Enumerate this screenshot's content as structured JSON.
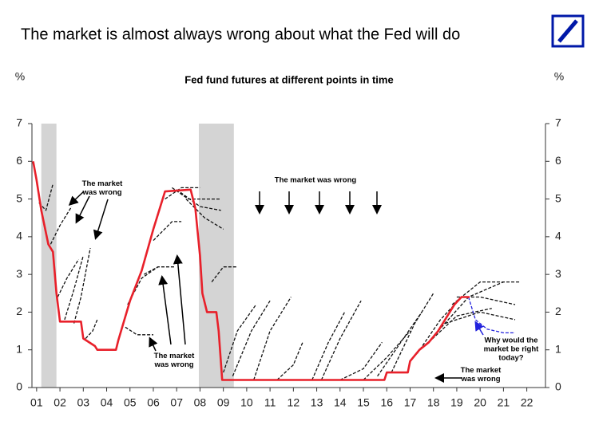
{
  "page_title": "The market is almost always wrong about what the Fed will do",
  "chart_data": {
    "type": "line",
    "title": "Fed fund futures at different points in time",
    "y_label": "%",
    "y2_label": "%",
    "xlim": [
      2000.8,
      2022.8
    ],
    "xticks": [
      {
        "value": 2001,
        "label": "01"
      },
      {
        "value": 2002,
        "label": "02"
      },
      {
        "value": 2003,
        "label": "03"
      },
      {
        "value": 2004,
        "label": "04"
      },
      {
        "value": 2005,
        "label": "05"
      },
      {
        "value": 2006,
        "label": "06"
      },
      {
        "value": 2007,
        "label": "07"
      },
      {
        "value": 2008,
        "label": "08"
      },
      {
        "value": 2009,
        "label": "09"
      },
      {
        "value": 2010,
        "label": "10"
      },
      {
        "value": 2011,
        "label": "11"
      },
      {
        "value": 2012,
        "label": "12"
      },
      {
        "value": 2013,
        "label": "13"
      },
      {
        "value": 2014,
        "label": "14"
      },
      {
        "value": 2015,
        "label": "15"
      },
      {
        "value": 2016,
        "label": "16"
      },
      {
        "value": 2017,
        "label": "17"
      },
      {
        "value": 2018,
        "label": "18"
      },
      {
        "value": 2019,
        "label": "19"
      },
      {
        "value": 2020,
        "label": "20"
      },
      {
        "value": 2021,
        "label": "21"
      },
      {
        "value": 2022,
        "label": "22"
      }
    ],
    "ylim": [
      0,
      7
    ],
    "yticks": [
      0,
      1,
      2,
      3,
      4,
      5,
      6,
      7
    ],
    "y2lim": [
      0,
      7
    ],
    "y2ticks": [
      0,
      1,
      2,
      3,
      4,
      5,
      6,
      7
    ],
    "shaded_periods": [
      [
        2001.2,
        2001.85
      ],
      [
        2007.95,
        2009.45
      ]
    ],
    "shade_color": "#d4d4d4",
    "series": [
      {
        "color": "#111111",
        "dashed": true,
        "x": [
          2001.1,
          2001.4,
          2001.7
        ],
        "values": [
          4.9,
          4.7,
          5.4
        ]
      },
      {
        "color": "#111111",
        "dashed": true,
        "x": [
          2001.6,
          2002.0,
          2002.5
        ],
        "values": [
          3.8,
          4.3,
          4.8
        ]
      },
      {
        "color": "#111111",
        "dashed": true,
        "x": [
          2001.9,
          2002.3,
          2002.8
        ],
        "values": [
          2.4,
          2.9,
          3.4
        ]
      },
      {
        "color": "#111111",
        "dashed": true,
        "x": [
          2002.2,
          2002.6,
          2003.0
        ],
        "values": [
          1.8,
          2.6,
          3.5
        ]
      },
      {
        "color": "#111111",
        "dashed": true,
        "x": [
          2002.6,
          2002.9,
          2003.3
        ],
        "values": [
          1.7,
          2.4,
          3.7
        ]
      },
      {
        "color": "#111111",
        "dashed": true,
        "x": [
          2003.1,
          2003.4,
          2003.6
        ],
        "values": [
          1.3,
          1.5,
          1.8
        ]
      },
      {
        "color": "#111111",
        "dashed": true,
        "x": [
          2004.8,
          2005.3,
          2006.0
        ],
        "values": [
          1.6,
          1.4,
          1.4
        ]
      },
      {
        "color": "#111111",
        "dashed": true,
        "x": [
          2004.9,
          2005.5,
          2006.2
        ],
        "values": [
          2.2,
          2.9,
          3.2
        ]
      },
      {
        "color": "#111111",
        "dashed": true,
        "x": [
          2005.6,
          2006.2,
          2006.9
        ],
        "values": [
          3.0,
          3.2,
          3.2
        ]
      },
      {
        "color": "#111111",
        "dashed": true,
        "x": [
          2006.0,
          2006.8,
          2007.2
        ],
        "values": [
          3.9,
          4.4,
          4.4
        ]
      },
      {
        "color": "#111111",
        "dashed": true,
        "x": [
          2006.5,
          2007.2,
          2008.0
        ],
        "values": [
          5.0,
          5.3,
          5.3
        ]
      },
      {
        "color": "#111111",
        "dashed": true,
        "x": [
          2006.8,
          2007.5,
          2008.9
        ],
        "values": [
          5.3,
          5.0,
          5.0
        ]
      },
      {
        "color": "#111111",
        "dashed": true,
        "x": [
          2007.0,
          2008.0,
          2008.9
        ],
        "values": [
          5.25,
          4.8,
          4.7
        ]
      },
      {
        "color": "#111111",
        "dashed": true,
        "x": [
          2007.4,
          2008.2,
          2009.0
        ],
        "values": [
          5.0,
          4.5,
          4.2
        ]
      },
      {
        "color": "#111111",
        "dashed": true,
        "x": [
          2008.5,
          2009.0,
          2009.6
        ],
        "values": [
          2.8,
          3.2,
          3.2
        ]
      },
      {
        "color": "#111111",
        "dashed": true,
        "x": [
          2009.0,
          2009.6,
          2010.4
        ],
        "values": [
          0.4,
          1.5,
          2.2
        ]
      },
      {
        "color": "#111111",
        "dashed": true,
        "x": [
          2009.4,
          2010.2,
          2011.0
        ],
        "values": [
          0.3,
          1.5,
          2.3
        ]
      },
      {
        "color": "#111111",
        "dashed": true,
        "x": [
          2010.3,
          2011.0,
          2011.9
        ],
        "values": [
          0.2,
          1.5,
          2.4
        ]
      },
      {
        "color": "#111111",
        "dashed": true,
        "x": [
          2011.3,
          2012.0,
          2012.4
        ],
        "values": [
          0.2,
          0.6,
          1.2
        ]
      },
      {
        "color": "#111111",
        "dashed": true,
        "x": [
          2012.8,
          2013.5,
          2014.2
        ],
        "values": [
          0.2,
          1.2,
          2.0
        ]
      },
      {
        "color": "#111111",
        "dashed": true,
        "x": [
          2013.2,
          2014.0,
          2014.9
        ],
        "values": [
          0.2,
          1.3,
          2.3
        ]
      },
      {
        "color": "#111111",
        "dashed": true,
        "x": [
          2014.0,
          2015.0,
          2015.8
        ],
        "values": [
          0.2,
          0.5,
          1.2
        ]
      },
      {
        "color": "#111111",
        "dashed": true,
        "x": [
          2015.0,
          2016.0,
          2017.0
        ],
        "values": [
          0.2,
          0.8,
          1.5
        ]
      },
      {
        "color": "#111111",
        "dashed": true,
        "x": [
          2015.6,
          2016.6,
          2017.5
        ],
        "values": [
          0.3,
          1.2,
          2.0
        ]
      },
      {
        "color": "#111111",
        "dashed": true,
        "x": [
          2016.2,
          2017.2,
          2018.0
        ],
        "values": [
          0.4,
          1.7,
          2.5
        ]
      },
      {
        "color": "#111111",
        "dashed": true,
        "x": [
          2017.3,
          2018.3,
          2019.2
        ],
        "values": [
          0.9,
          1.8,
          2.4
        ]
      },
      {
        "color": "#111111",
        "dashed": true,
        "x": [
          2017.8,
          2019.0,
          2020.5
        ],
        "values": [
          1.2,
          1.9,
          2.1
        ]
      },
      {
        "color": "#111111",
        "dashed": true,
        "x": [
          2018.2,
          2019.5,
          2021.0
        ],
        "values": [
          1.5,
          2.4,
          2.8
        ]
      },
      {
        "color": "#111111",
        "dashed": true,
        "x": [
          2018.8,
          2020.0,
          2021.7
        ],
        "values": [
          2.2,
          2.8,
          2.8
        ]
      },
      {
        "color": "#111111",
        "dashed": true,
        "x": [
          2019.0,
          2020.0,
          2021.5
        ],
        "values": [
          2.4,
          2.4,
          2.2
        ]
      },
      {
        "color": "#111111",
        "dashed": true,
        "x": [
          2018.5,
          2020.0,
          2021.5
        ],
        "values": [
          1.7,
          2.0,
          1.8
        ]
      },
      {
        "color": "#2222dd",
        "dashed": true,
        "x": [
          2019.5,
          2019.8,
          2020.3,
          2021.0,
          2021.5
        ],
        "values": [
          2.4,
          1.8,
          1.55,
          1.45,
          1.45
        ]
      },
      {
        "color": "#e8202a",
        "dashed": false,
        "x": [
          2000.85,
          2001.0,
          2001.2,
          2001.5,
          2001.7,
          2001.85,
          2002.0,
          2002.9,
          2003.0,
          2003.5,
          2003.6,
          2004.4,
          2004.5,
          2005.0,
          2005.5,
          2006.0,
          2006.5,
          2007.6,
          2007.8,
          2008.0,
          2008.1,
          2008.3,
          2008.7,
          2008.8,
          2008.95,
          2015.9,
          2016.0,
          2016.9,
          2017.0,
          2017.4,
          2017.8,
          2018.2,
          2018.6,
          2018.9,
          2019.2,
          2019.55
        ],
        "values": [
          6.0,
          5.5,
          4.7,
          3.8,
          3.6,
          2.5,
          1.75,
          1.75,
          1.3,
          1.1,
          1.0,
          1.0,
          1.25,
          2.3,
          3.1,
          4.2,
          5.2,
          5.25,
          4.75,
          3.5,
          2.5,
          2.0,
          2.0,
          1.5,
          0.2,
          0.2,
          0.4,
          0.4,
          0.7,
          1.0,
          1.2,
          1.5,
          1.9,
          2.2,
          2.4,
          2.4
        ]
      }
    ],
    "annotations": [
      {
        "lines": [
          "The market",
          "was wrong"
        ],
        "color": "#000000"
      },
      {
        "lines": [
          "The market was wrong"
        ],
        "color": "#000000"
      },
      {
        "lines": [
          "The market",
          "was wrong"
        ],
        "color": "#000000"
      },
      {
        "lines": [
          "The market",
          "was wrong"
        ],
        "color": "#000000"
      },
      {
        "lines": [
          "Why would the",
          "market be right",
          "today?"
        ],
        "color": "#2222dd"
      }
    ]
  }
}
